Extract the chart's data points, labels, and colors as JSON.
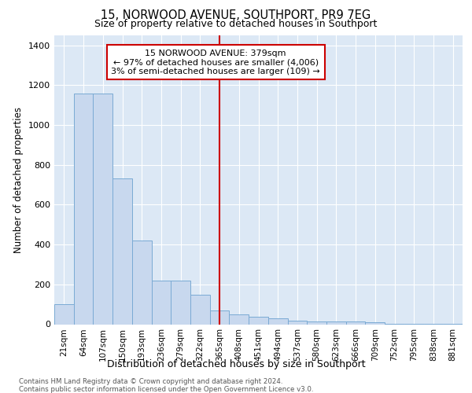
{
  "title1": "15, NORWOOD AVENUE, SOUTHPORT, PR9 7EG",
  "title2": "Size of property relative to detached houses in Southport",
  "xlabel": "Distribution of detached houses by size in Southport",
  "ylabel": "Number of detached properties",
  "categories": [
    "21sqm",
    "64sqm",
    "107sqm",
    "150sqm",
    "193sqm",
    "236sqm",
    "279sqm",
    "322sqm",
    "365sqm",
    "408sqm",
    "451sqm",
    "494sqm",
    "537sqm",
    "580sqm",
    "623sqm",
    "666sqm",
    "709sqm",
    "752sqm",
    "795sqm",
    "838sqm",
    "881sqm"
  ],
  "values": [
    100,
    1160,
    1160,
    730,
    420,
    220,
    220,
    148,
    70,
    50,
    38,
    28,
    18,
    15,
    12,
    15,
    10,
    2,
    2,
    2,
    2
  ],
  "bar_color": "#c8d8ee",
  "bar_edge_color": "#7aaad4",
  "vline_x_index": 8,
  "vline_color": "#cc0000",
  "annotation_line1": "15 NORWOOD AVENUE: 379sqm",
  "annotation_line2": "← 97% of detached houses are smaller (4,006)",
  "annotation_line3": "3% of semi-detached houses are larger (109) →",
  "annotation_box_color": "#cc0000",
  "annotation_bg": "#ffffff",
  "ylim": [
    0,
    1450
  ],
  "yticks": [
    0,
    200,
    400,
    600,
    800,
    1000,
    1200,
    1400
  ],
  "bg_color": "#dce8f5",
  "fig_bg": "#ffffff",
  "footer1": "Contains HM Land Registry data © Crown copyright and database right 2024.",
  "footer2": "Contains public sector information licensed under the Open Government Licence v3.0."
}
